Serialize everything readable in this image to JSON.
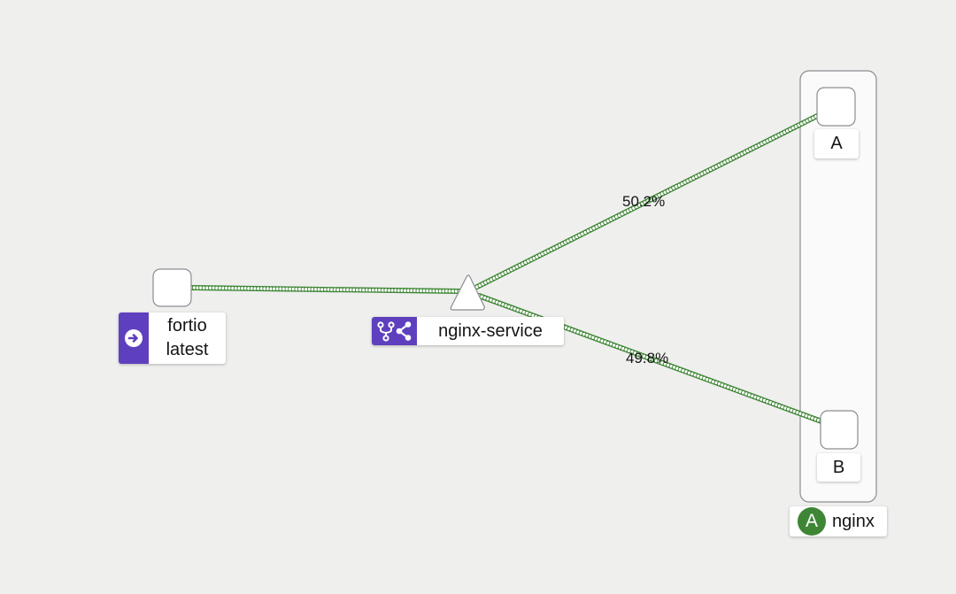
{
  "colors": {
    "background": "#efefee",
    "edge": "#3e8635",
    "edge_dot": "#ffffff",
    "app_badge": "#3e8635",
    "node_type_badge": "#5e40be",
    "node_border": "#8a8d90"
  },
  "nodes": {
    "fortio": {
      "name": "fortio",
      "version": "latest",
      "badge_icon": "arrow-circle-right-icon"
    },
    "service": {
      "name": "nginx-service",
      "badge_icon": "virtual-service-share-icon"
    },
    "workload_a": {
      "name": "A"
    },
    "workload_b": {
      "name": "B"
    }
  },
  "app_box": {
    "badge": "A",
    "name": "nginx"
  },
  "edges": {
    "to_a": {
      "label": "50.2%"
    },
    "to_b": {
      "label": "49.8%"
    }
  }
}
